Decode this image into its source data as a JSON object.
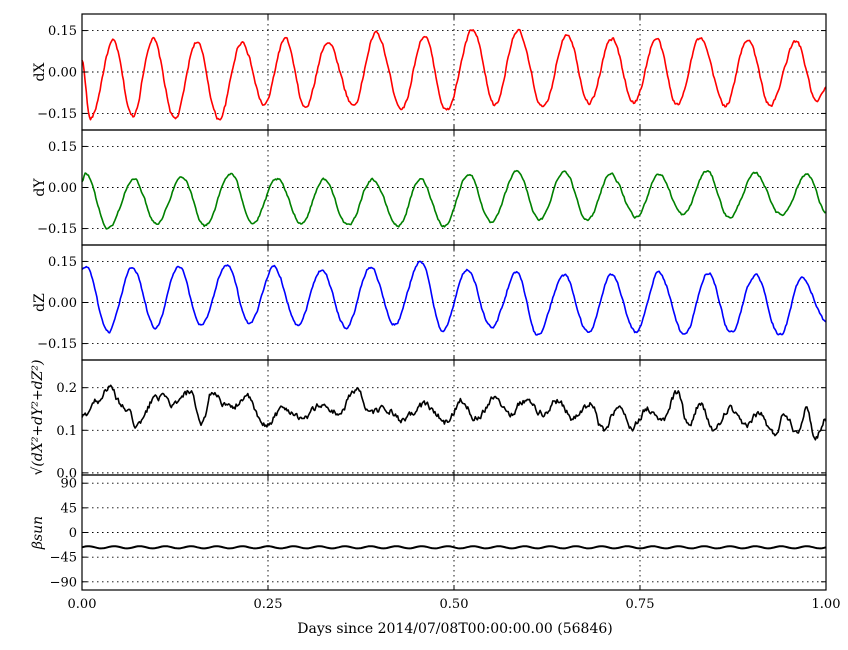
{
  "chart_data": {
    "type": "line",
    "xlabel": "Days since 2014/07/08T00:00:00.00 (56846)",
    "xlim": [
      0,
      1
    ],
    "xticks": [
      0,
      0.25,
      0.5,
      0.75,
      1.0
    ],
    "xtick_labels": [
      "0.00",
      "0.25",
      "0.50",
      "0.75",
      "1.00"
    ],
    "grid": true,
    "panels": [
      {
        "id": "dX",
        "ylabel": "dX",
        "color": "#ff0000",
        "ylim": [
          -0.21,
          0.21
        ],
        "yticks": [
          -0.15,
          0,
          0.15
        ],
        "ytick_labels": [
          "−0.15",
          "0.00",
          "0.15"
        ],
        "x": [
          0,
          0.011,
          0.042,
          0.068,
          0.095,
          0.125,
          0.154,
          0.184,
          0.215,
          0.245,
          0.273,
          0.3,
          0.33,
          0.365,
          0.395,
          0.43,
          0.46,
          0.49,
          0.525,
          0.555,
          0.585,
          0.62,
          0.652,
          0.682,
          0.712,
          0.742,
          0.772,
          0.8,
          0.83,
          0.865,
          0.895,
          0.925,
          0.96,
          0.988,
          1.0
        ],
        "y": [
          0.04,
          -0.17,
          0.11,
          -0.16,
          0.12,
          -0.17,
          0.11,
          -0.17,
          0.11,
          -0.12,
          0.12,
          -0.13,
          0.11,
          -0.12,
          0.14,
          -0.13,
          0.13,
          -0.14,
          0.15,
          -0.12,
          0.15,
          -0.13,
          0.14,
          -0.11,
          0.12,
          -0.11,
          0.12,
          -0.12,
          0.12,
          -0.12,
          0.12,
          -0.12,
          0.11,
          -0.11,
          -0.06
        ]
      },
      {
        "id": "dY",
        "ylabel": "dY",
        "color": "#008000",
        "ylim": [
          -0.21,
          0.21
        ],
        "yticks": [
          -0.15,
          0,
          0.15
        ],
        "ytick_labels": [
          "−0.15",
          "0.00",
          "0.15"
        ],
        "x": [
          0,
          0.005,
          0.035,
          0.07,
          0.1,
          0.135,
          0.165,
          0.2,
          0.23,
          0.262,
          0.295,
          0.325,
          0.358,
          0.39,
          0.425,
          0.455,
          0.487,
          0.52,
          0.55,
          0.585,
          0.615,
          0.648,
          0.68,
          0.71,
          0.745,
          0.775,
          0.808,
          0.84,
          0.87,
          0.905,
          0.94,
          0.975,
          1.0
        ],
        "y": [
          0.02,
          0.05,
          -0.15,
          0.03,
          -0.13,
          0.04,
          -0.14,
          0.05,
          -0.13,
          0.03,
          -0.13,
          0.03,
          -0.14,
          0.03,
          -0.14,
          0.03,
          -0.14,
          0.05,
          -0.13,
          0.06,
          -0.12,
          0.06,
          -0.12,
          0.05,
          -0.11,
          0.05,
          -0.1,
          0.06,
          -0.11,
          0.05,
          -0.1,
          0.05,
          -0.09
        ]
      },
      {
        "id": "dZ",
        "ylabel": "dZ",
        "color": "#0000ff",
        "ylim": [
          -0.21,
          0.21
        ],
        "yticks": [
          -0.15,
          0,
          0.15
        ],
        "ytick_labels": [
          "−0.15",
          "0.00",
          "0.15"
        ],
        "x": [
          0,
          0.006,
          0.035,
          0.068,
          0.098,
          0.13,
          0.16,
          0.195,
          0.225,
          0.258,
          0.29,
          0.322,
          0.355,
          0.388,
          0.42,
          0.455,
          0.485,
          0.518,
          0.55,
          0.585,
          0.612,
          0.648,
          0.68,
          0.712,
          0.745,
          0.775,
          0.81,
          0.842,
          0.872,
          0.905,
          0.938,
          0.968,
          1.0
        ],
        "y": [
          0.12,
          0.13,
          -0.11,
          0.13,
          -0.09,
          0.13,
          -0.08,
          0.14,
          -0.08,
          0.13,
          -0.08,
          0.12,
          -0.09,
          0.13,
          -0.08,
          0.15,
          -0.1,
          0.12,
          -0.09,
          0.11,
          -0.12,
          0.1,
          -0.11,
          0.1,
          -0.11,
          0.11,
          -0.12,
          0.11,
          -0.11,
          0.1,
          -0.12,
          0.09,
          -0.07
        ]
      },
      {
        "id": "dR",
        "ylabel": "√(dX²+dY²+dZ²)",
        "color": "#000000",
        "ylim": [
          -0.005,
          0.265
        ],
        "yticks": [
          0.0,
          0.1,
          0.2
        ],
        "ytick_labels": [
          "0.0",
          "0.1",
          "0.2"
        ],
        "x": [
          0,
          0.02,
          0.035,
          0.058,
          0.075,
          0.1,
          0.125,
          0.145,
          0.16,
          0.175,
          0.2,
          0.22,
          0.245,
          0.27,
          0.3,
          0.32,
          0.345,
          0.37,
          0.385,
          0.41,
          0.43,
          0.46,
          0.49,
          0.51,
          0.53,
          0.555,
          0.575,
          0.595,
          0.62,
          0.64,
          0.66,
          0.685,
          0.7,
          0.72,
          0.74,
          0.76,
          0.78,
          0.8,
          0.815,
          0.83,
          0.85,
          0.87,
          0.89,
          0.91,
          0.93,
          0.945,
          0.96,
          0.975,
          0.985,
          1.0
        ],
        "y": [
          0.13,
          0.17,
          0.2,
          0.15,
          0.11,
          0.18,
          0.16,
          0.19,
          0.11,
          0.19,
          0.15,
          0.18,
          0.11,
          0.15,
          0.13,
          0.16,
          0.14,
          0.2,
          0.14,
          0.15,
          0.12,
          0.16,
          0.12,
          0.17,
          0.13,
          0.18,
          0.14,
          0.17,
          0.14,
          0.17,
          0.13,
          0.16,
          0.1,
          0.15,
          0.11,
          0.15,
          0.12,
          0.19,
          0.11,
          0.16,
          0.1,
          0.15,
          0.11,
          0.14,
          0.09,
          0.14,
          0.1,
          0.15,
          0.08,
          0.13
        ]
      },
      {
        "id": "beta",
        "ylabel": "βsun",
        "color": "#000000",
        "ylim": [
          -105,
          105
        ],
        "yticks": [
          -90,
          -45,
          0,
          45,
          90
        ],
        "ytick_labels": [
          "−90",
          "−45",
          "0",
          "45",
          "90"
        ],
        "x": [
          0,
          1.0
        ],
        "y": [
          -27,
          -27
        ],
        "wobble_amplitude": 2,
        "wobble_cycles": 29
      }
    ]
  }
}
